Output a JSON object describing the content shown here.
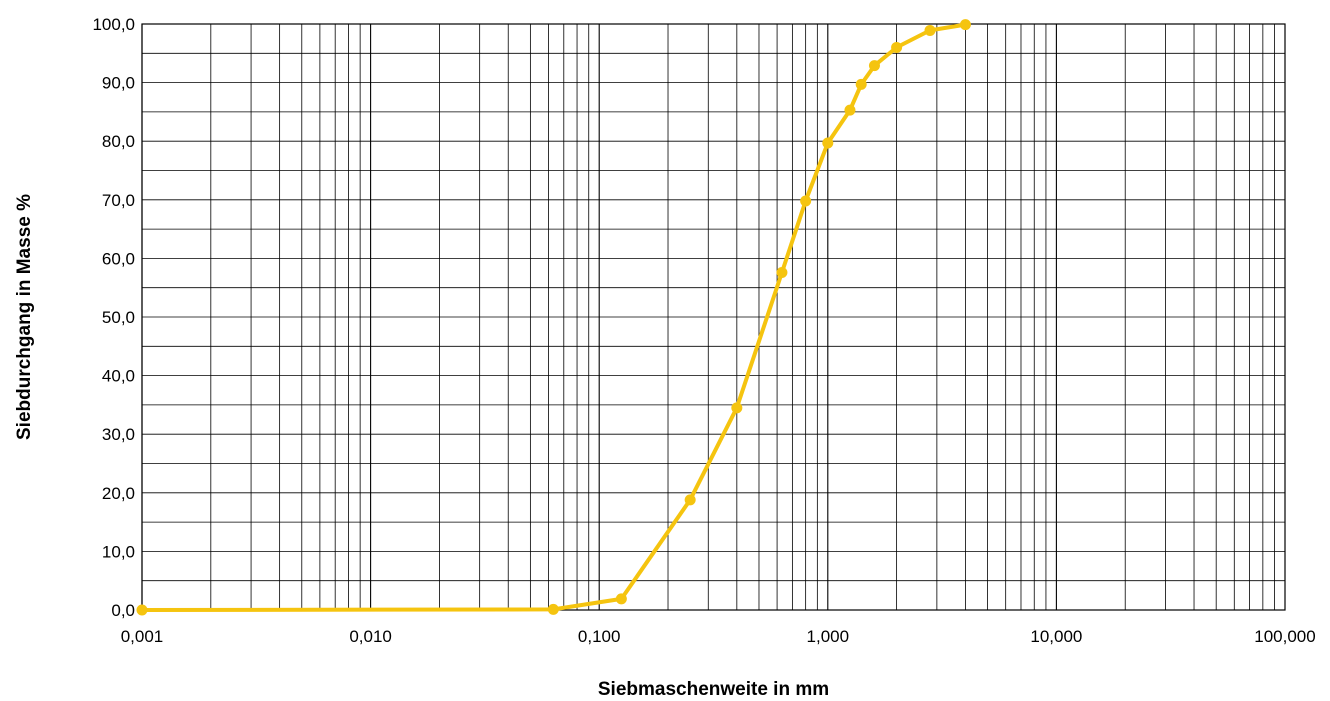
{
  "chart_data": {
    "type": "line",
    "title": "",
    "xlabel": "Siebmaschenweite in mm",
    "ylabel": "Siebdurchgang in Masse %",
    "x_scale": "log",
    "xlim": [
      0.001,
      100
    ],
    "ylim": [
      0,
      100
    ],
    "grid": true,
    "legend": "none",
    "x_ticks": [
      {
        "value": 0.001,
        "label": "0,001"
      },
      {
        "value": 0.01,
        "label": "0,010"
      },
      {
        "value": 0.1,
        "label": "0,100"
      },
      {
        "value": 1,
        "label": "1,000"
      },
      {
        "value": 10,
        "label": "10,000"
      },
      {
        "value": 100,
        "label": "100,000"
      }
    ],
    "y_ticks": [
      {
        "value": 0,
        "label": "0,0"
      },
      {
        "value": 10,
        "label": "10,0"
      },
      {
        "value": 20,
        "label": "20,0"
      },
      {
        "value": 30,
        "label": "30,0"
      },
      {
        "value": 40,
        "label": "40,0"
      },
      {
        "value": 50,
        "label": "50,0"
      },
      {
        "value": 60,
        "label": "60,0"
      },
      {
        "value": 70,
        "label": "70,0"
      },
      {
        "value": 80,
        "label": "80,0"
      },
      {
        "value": 90,
        "label": "90,0"
      },
      {
        "value": 100,
        "label": "100,0"
      }
    ],
    "series": [
      {
        "color": "#F5C40F",
        "points": [
          {
            "x": 0.001,
            "y": 0.0
          },
          {
            "x": 0.063,
            "y": 0.1
          },
          {
            "x": 0.125,
            "y": 1.9
          },
          {
            "x": 0.25,
            "y": 18.8
          },
          {
            "x": 0.4,
            "y": 34.5
          },
          {
            "x": 0.63,
            "y": 57.6
          },
          {
            "x": 0.8,
            "y": 69.8
          },
          {
            "x": 1.0,
            "y": 79.7
          },
          {
            "x": 1.25,
            "y": 85.3
          },
          {
            "x": 1.4,
            "y": 89.7
          },
          {
            "x": 1.6,
            "y": 92.9
          },
          {
            "x": 2.0,
            "y": 96.0
          },
          {
            "x": 2.8,
            "y": 98.9
          },
          {
            "x": 4.0,
            "y": 99.9
          }
        ]
      }
    ]
  }
}
